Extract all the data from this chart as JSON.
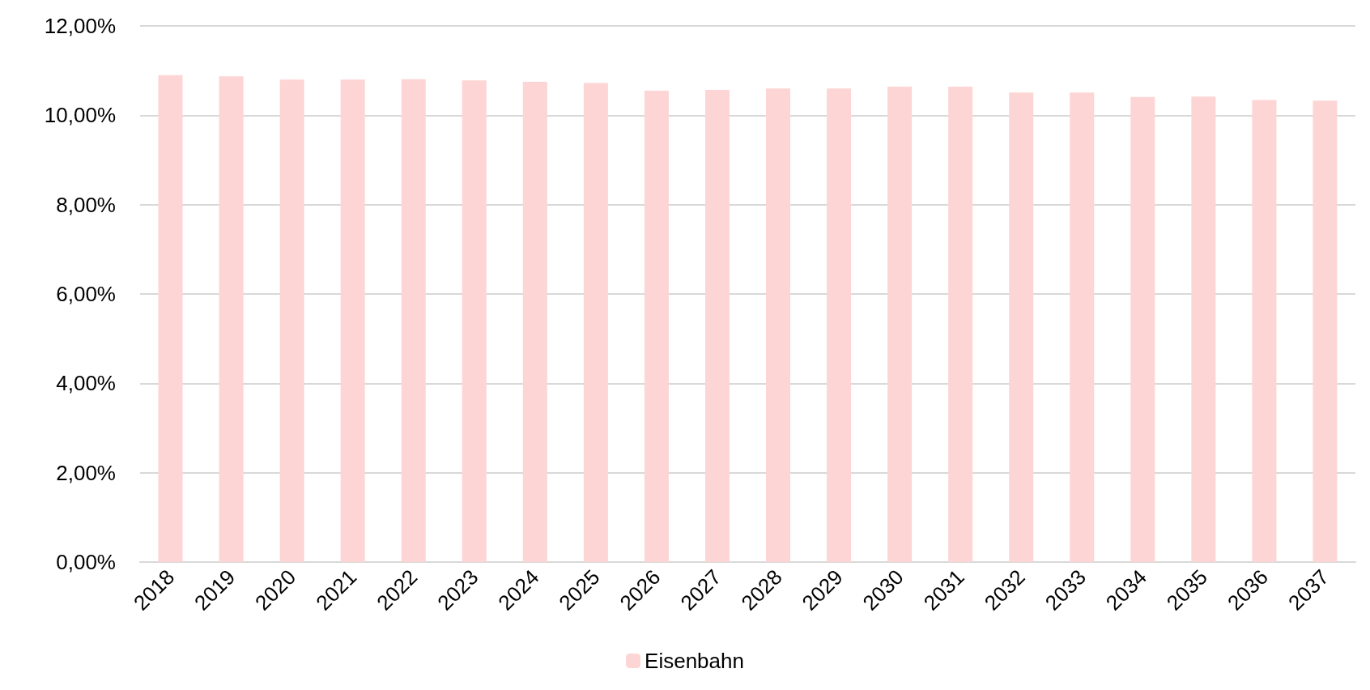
{
  "chart_data": {
    "type": "bar",
    "categories": [
      "2018",
      "2019",
      "2020",
      "2021",
      "2022",
      "2023",
      "2024",
      "2025",
      "2026",
      "2027",
      "2028",
      "2029",
      "2030",
      "2031",
      "2032",
      "2033",
      "2034",
      "2035",
      "2036",
      "2037"
    ],
    "series": [
      {
        "name": "Eisenbahn",
        "color": "#fdd5d5",
        "values": [
          10.9,
          10.87,
          10.8,
          10.8,
          10.81,
          10.78,
          10.75,
          10.72,
          10.55,
          10.57,
          10.6,
          10.6,
          10.64,
          10.64,
          10.51,
          10.51,
          10.41,
          10.42,
          10.34,
          10.33
        ]
      }
    ],
    "ylim": [
      0,
      12
    ],
    "yticks": [
      {
        "value": 0,
        "label": "0,00%"
      },
      {
        "value": 2,
        "label": "2,00%"
      },
      {
        "value": 4,
        "label": "4,00%"
      },
      {
        "value": 6,
        "label": "6,00%"
      },
      {
        "value": 8,
        "label": "8,00%"
      },
      {
        "value": 10,
        "label": "10,00%"
      },
      {
        "value": 12,
        "label": "12,00%"
      }
    ],
    "grid": "y",
    "legend": "bottom"
  }
}
